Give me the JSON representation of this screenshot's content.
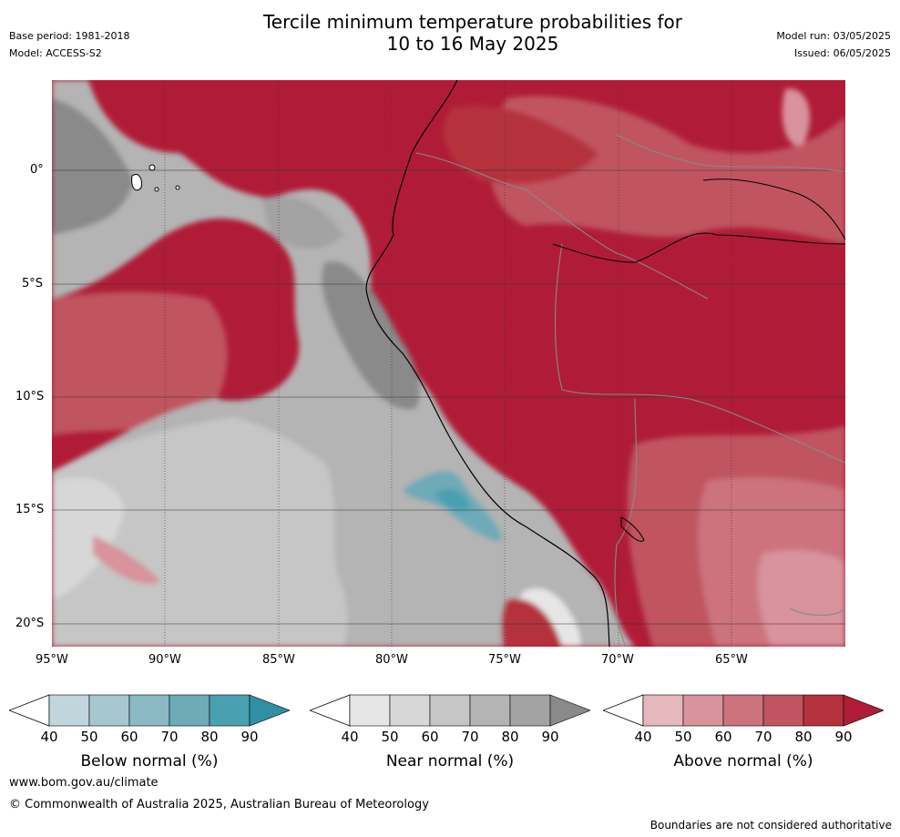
{
  "title_line1": "Tercile minimum temperature probabilities for",
  "title_line2": "10 to 16 May 2025",
  "meta_left": {
    "base_period": "Base period: 1981-2018",
    "model": "Model: ACCESS-S2"
  },
  "meta_right": {
    "model_run": "Model run: 03/05/2025",
    "issued": "Issued: 06/05/2025"
  },
  "map": {
    "lat_labels": [
      "0°",
      "5°S",
      "10°S",
      "15°S",
      "20°S"
    ],
    "lon_labels": [
      "95°W",
      "90°W",
      "85°W",
      "80°W",
      "75°W",
      "70°W",
      "65°W"
    ]
  },
  "colorbars": [
    {
      "title": "Below normal (%)",
      "ticks": [
        "40",
        "50",
        "60",
        "70",
        "80",
        "90"
      ],
      "colors": [
        "#c0d6dc",
        "#a7c7ce",
        "#8bb9c4",
        "#6eaab7",
        "#49a0b0",
        "#2f8fa3"
      ]
    },
    {
      "title": "Near normal (%)",
      "ticks": [
        "40",
        "50",
        "60",
        "70",
        "80",
        "90"
      ],
      "colors": [
        "#e6e6e6",
        "#d7d7d7",
        "#c6c6c6",
        "#b4b4b4",
        "#a3a3a3",
        "#8a8a8a"
      ]
    },
    {
      "title": "Above normal (%)",
      "ticks": [
        "40",
        "50",
        "60",
        "70",
        "80",
        "90"
      ],
      "colors": [
        "#e5b8be",
        "#d8939c",
        "#cc737e",
        "#c05460",
        "#b5313e",
        "#b01c37"
      ]
    }
  ],
  "footer": {
    "website": "www.bom.gov.au/climate",
    "copyright": "© Commonwealth of Australia 2025, Australian Bureau of Meteorology",
    "boundaries_note": "Boundaries are not considered authoritative"
  }
}
